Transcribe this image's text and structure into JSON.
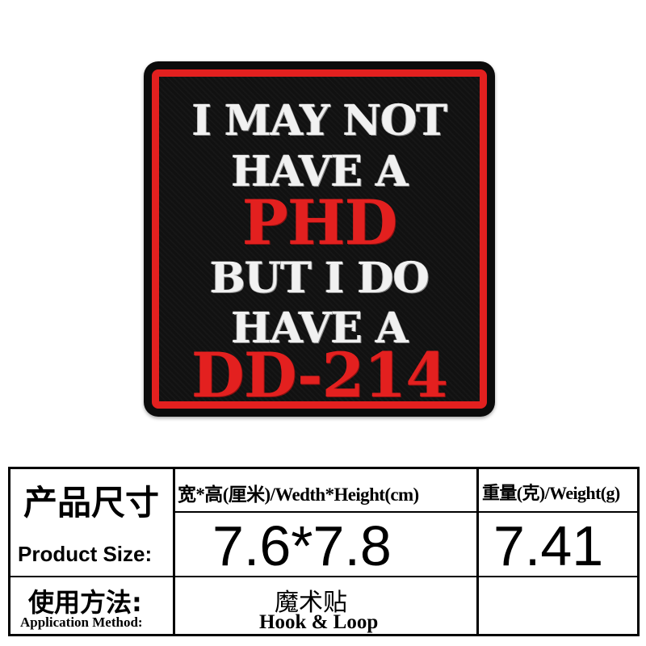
{
  "patch": {
    "lines": [
      {
        "text": "I MAY NOT",
        "color": "#f1f1f1"
      },
      {
        "text": "HAVE A",
        "color": "#f1f1f1"
      },
      {
        "text": "PHD",
        "color": "#e3201f"
      },
      {
        "text": "BUT I DO",
        "color": "#f1f1f1"
      },
      {
        "text": "HAVE A",
        "color": "#f1f1f1"
      },
      {
        "text": "DD-214",
        "color": "#e3201f"
      }
    ],
    "border_color": "#e3201f",
    "background_color": "#111111"
  },
  "table": {
    "size_label_zh": "产品尺寸",
    "size_label_en": "Product Size:",
    "dimension_header": "宽*高(厘米)/Wedth*Height(cm)",
    "dimension_value": "7.6*7.8",
    "weight_header": "重量(克)/Weight(g)",
    "weight_value": "7.41",
    "method_label_zh": "使用方法:",
    "method_label_en": "Application Method:",
    "method_value_zh": "魔术贴",
    "method_value_en": "Hook & Loop"
  }
}
